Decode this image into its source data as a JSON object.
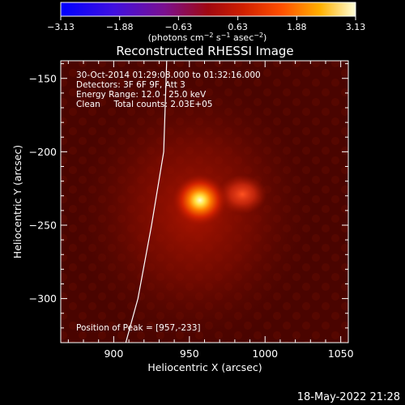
{
  "chart_data": {
    "type": "heatmap",
    "title": "Reconstructed RHESSI Image",
    "xlabel": "Heliocentric X (arcsec)",
    "ylabel": "Heliocentric Y (arcsec)",
    "xlim": [
      865,
      1055
    ],
    "ylim": [
      -330,
      -138
    ],
    "x_ticks": [
      900,
      950,
      1000,
      1050
    ],
    "y_ticks": [
      -150,
      -200,
      -250,
      -300
    ],
    "x_tick_labels": [
      "900",
      "950",
      "1000",
      "1050"
    ],
    "y_tick_labels": [
      "−150",
      "−200",
      "−250",
      "−300"
    ],
    "colorbar": {
      "min": -3.13,
      "max": 3.13,
      "tick_labels": [
        "−3.13",
        "−1.88",
        "−0.63",
        "0.63",
        "1.88",
        "3.13"
      ],
      "tick_values": [
        -3.13,
        -1.88,
        -0.63,
        0.63,
        1.88,
        3.13
      ],
      "unit_prefix": "(photons cm",
      "unit_exp1": "−2",
      "unit_mid": " s",
      "unit_exp2": "−1",
      "unit_mid2": " asec",
      "unit_exp3": "−2",
      "unit_suffix": ")"
    },
    "annotations": [
      "30-Oct-2014 01:29:08.000 to 01:32:16.000",
      "Detectors: 3F 6F 9F, Att 3",
      "Energy Range: 12.0 - 25.0 keV",
      "Clean     Total counts: 2.03E+05"
    ],
    "peak_label": "Position of Peak = [957,-233]",
    "peak": {
      "x": 957,
      "y": -233,
      "value": 3.13
    },
    "secondary_source": {
      "x": 985,
      "y": -229,
      "value": 1.3
    },
    "limb_line": [
      [
        935,
        -138
      ],
      [
        933,
        -200
      ],
      [
        925,
        -250
      ],
      [
        916,
        -300
      ],
      [
        908,
        -330
      ]
    ]
  },
  "footer_date": "18-May-2022 21:28",
  "colors": {
    "background": "#000000",
    "text": "#ffffff"
  }
}
